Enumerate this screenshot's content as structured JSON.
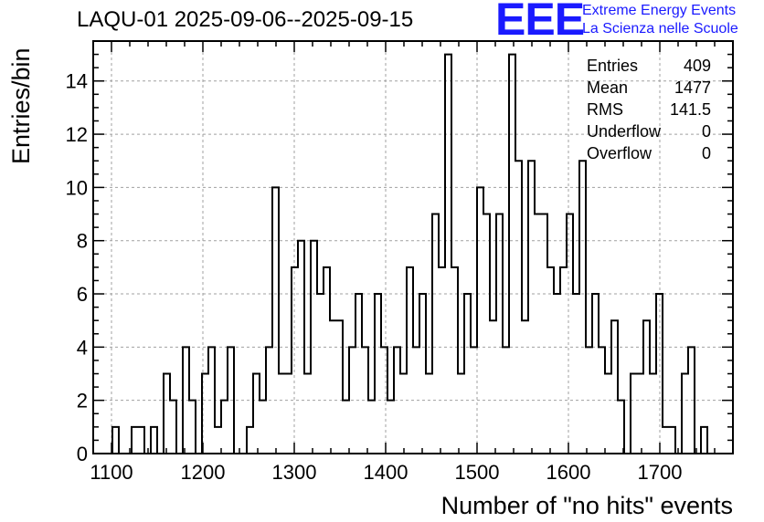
{
  "title": "LAQU-01 2025-09-06--2025-09-15",
  "logo": {
    "mark": "EEE",
    "line1": "Extreme Energy Events",
    "line2": "La Scienza nelle Scuole",
    "color": "#1a1aff"
  },
  "stats": [
    {
      "label": "Entries",
      "value": "409"
    },
    {
      "label": "Mean",
      "value": "1477"
    },
    {
      "label": "RMS",
      "value": "141.5"
    },
    {
      "label": "Underflow",
      "value": "0"
    },
    {
      "label": "Overflow",
      "value": "0"
    }
  ],
  "chart_data": {
    "type": "bar",
    "subtype": "step-histogram",
    "title": "LAQU-01 2025-09-06--2025-09-15",
    "xlabel": "Number of \"no hits\" events",
    "ylabel": "Entries/bin",
    "xlim": [
      1080,
      1780
    ],
    "ylim": [
      0,
      15.5
    ],
    "bin_width": 7,
    "first_bin_low_edge": 1080,
    "x_ticks": [
      1100,
      1200,
      1300,
      1400,
      1500,
      1600,
      1700
    ],
    "y_ticks": [
      0,
      2,
      4,
      6,
      8,
      10,
      12,
      14
    ],
    "grid": true,
    "line_color": "#000000",
    "grid_color": "#a0a0a0",
    "values": [
      0,
      0,
      0,
      1,
      0,
      0,
      1,
      1,
      0,
      1,
      0,
      3,
      2,
      0,
      4,
      2,
      0,
      3,
      4,
      1,
      2,
      4,
      0,
      0,
      1,
      3,
      2,
      4,
      10,
      3,
      3,
      7,
      8,
      3,
      8,
      6,
      7,
      5,
      5,
      2,
      4,
      6,
      4,
      2,
      6,
      4,
      2,
      4,
      3,
      7,
      4,
      6,
      3,
      9,
      7,
      15,
      7,
      3,
      6,
      4,
      10,
      9,
      5,
      9,
      4,
      15,
      11,
      5,
      11,
      9,
      9,
      7,
      6,
      7,
      9,
      6,
      11,
      4,
      6,
      4,
      3,
      5,
      2,
      0,
      3,
      3,
      5,
      3,
      6,
      1,
      1,
      0,
      3,
      4,
      0,
      1,
      0,
      0,
      0,
      0
    ]
  }
}
